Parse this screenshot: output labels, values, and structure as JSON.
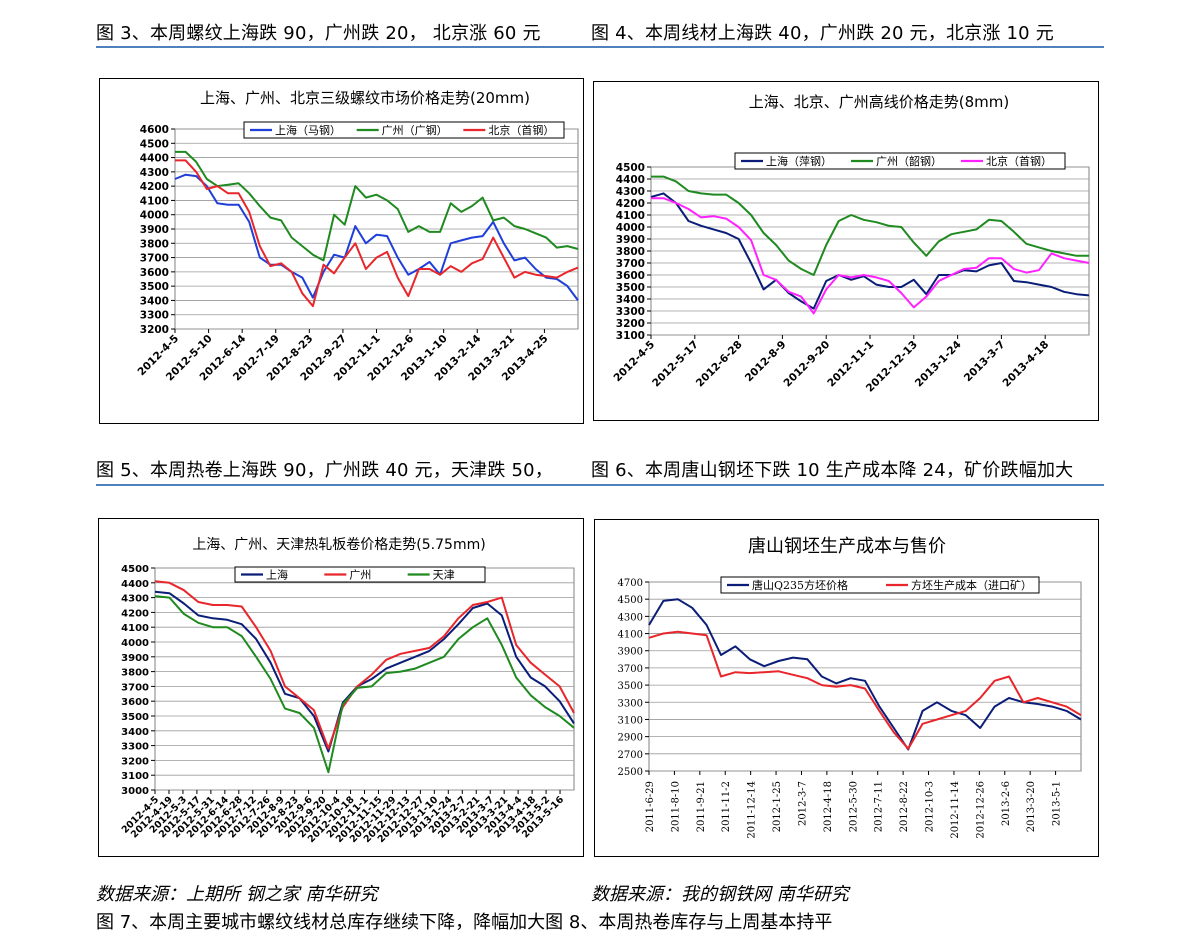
{
  "captions": {
    "fig3": "图 3、本周螺纹上海跌 90，广州跌 20，  北京涨 60 元",
    "fig4": "图 4、本周线材上海跌 40，广州跌 20 元，北京涨 10 元",
    "fig5": "图 5、本周热卷上海跌 90，广州跌 40 元，天津跌 50，",
    "fig6": "图 6、本周唐山钢坯下跌 10 生产成本降 24，矿价跌幅加大"
  },
  "sources": {
    "left": "数据来源：上期所   钢之家    南华研究",
    "right": "数据来源：我的钢铁网    南华研究"
  },
  "footer_cut": "图 7、本周主要城市螺纹线材总库存继续下降，降幅加大图 8、本周热卷库存与上周基本持平",
  "colors": {
    "blue": "#1f3fd8",
    "green": "#1f8a1f",
    "red": "#e8262b",
    "magenta": "#ff22ff",
    "navy": "#0a1d78",
    "border": "#4f81bd"
  },
  "chart_data": [
    {
      "type": "line",
      "title": "上海、广州、北京三级螺纹市场价格走势(20mm)",
      "ylim": [
        3200,
        4600
      ],
      "yticks": [
        "3200",
        "3300",
        "3400",
        "3500",
        "3600",
        "3700",
        "3800",
        "3900",
        "4000",
        "4100",
        "4200",
        "4300",
        "4400",
        "4500",
        "4600"
      ],
      "xticks": [
        "2012-4-5",
        "2012-5-10",
        "2012-6-14",
        "2012-7-19",
        "2012-8-23",
        "2012-9-27",
        "2012-11-1",
        "2012-12-6",
        "2013-1-10",
        "2013-2-14",
        "2013-3-21",
        "2013-4-25"
      ],
      "legend_position": "top",
      "series": [
        {
          "name": "上海（马钢）",
          "color": "#1f3fd8",
          "values": [
            4250,
            4280,
            4270,
            4200,
            4080,
            4070,
            4070,
            3950,
            3700,
            3650,
            3650,
            3600,
            3560,
            3420,
            3600,
            3720,
            3700,
            3920,
            3800,
            3860,
            3850,
            3700,
            3580,
            3620,
            3670,
            3580,
            3800,
            3820,
            3840,
            3850,
            3950,
            3800,
            3680,
            3700,
            3620,
            3560,
            3550,
            3500,
            3400
          ]
        },
        {
          "name": "广州（广钢）",
          "color": "#1f8a1f",
          "values": [
            4440,
            4440,
            4370,
            4250,
            4200,
            4210,
            4220,
            4150,
            4060,
            3980,
            3960,
            3840,
            3780,
            3720,
            3680,
            4000,
            3930,
            4200,
            4120,
            4140,
            4100,
            4040,
            3880,
            3920,
            3880,
            3880,
            4080,
            4020,
            4060,
            4120,
            3960,
            3980,
            3920,
            3900,
            3870,
            3840,
            3770,
            3780,
            3760
          ]
        },
        {
          "name": "北京（首钢）",
          "color": "#e8262b",
          "values": [
            4380,
            4380,
            4300,
            4180,
            4200,
            4150,
            4150,
            4020,
            3780,
            3640,
            3660,
            3600,
            3450,
            3360,
            3650,
            3590,
            3700,
            3800,
            3620,
            3700,
            3740,
            3560,
            3430,
            3620,
            3620,
            3580,
            3640,
            3600,
            3660,
            3690,
            3840,
            3700,
            3560,
            3600,
            3580,
            3570,
            3560,
            3600,
            3630
          ]
        }
      ]
    },
    {
      "type": "line",
      "title": "上海、北京、广州高线价格走势(8mm)",
      "ylim": [
        3100,
        4500
      ],
      "yticks": [
        "3100",
        "3200",
        "3300",
        "3400",
        "3500",
        "3600",
        "3700",
        "3800",
        "3900",
        "4000",
        "4100",
        "4200",
        "4300",
        "4400",
        "4500"
      ],
      "xticks": [
        "2012-4-5",
        "2012-5-17",
        "2012-6-28",
        "2012-8-9",
        "2012-9-20",
        "2012-11-1",
        "2012-12-13",
        "2013-1-24",
        "2013-3-7",
        "2013-4-18"
      ],
      "legend_position": "top",
      "series": [
        {
          "name": "上海（萍钢）",
          "color": "#0a1d78",
          "values": [
            4250,
            4280,
            4200,
            4050,
            4010,
            3980,
            3950,
            3900,
            3700,
            3480,
            3560,
            3450,
            3380,
            3320,
            3550,
            3600,
            3560,
            3590,
            3520,
            3500,
            3500,
            3560,
            3440,
            3600,
            3600,
            3640,
            3630,
            3680,
            3700,
            3550,
            3540,
            3520,
            3500,
            3460,
            3440,
            3430
          ]
        },
        {
          "name": "广州（韶钢）",
          "color": "#1f8a1f",
          "values": [
            4420,
            4420,
            4380,
            4300,
            4280,
            4270,
            4270,
            4200,
            4100,
            3950,
            3850,
            3720,
            3650,
            3600,
            3850,
            4050,
            4100,
            4060,
            4040,
            4010,
            4000,
            3870,
            3760,
            3880,
            3940,
            3960,
            3980,
            4060,
            4050,
            3960,
            3860,
            3830,
            3800,
            3780,
            3760,
            3760
          ]
        },
        {
          "name": "北京（首钢）",
          "color": "#ff22ff",
          "values": [
            4240,
            4240,
            4200,
            4150,
            4080,
            4090,
            4070,
            4000,
            3890,
            3600,
            3560,
            3460,
            3420,
            3280,
            3480,
            3600,
            3580,
            3600,
            3580,
            3550,
            3450,
            3330,
            3420,
            3550,
            3600,
            3650,
            3660,
            3740,
            3740,
            3650,
            3620,
            3640,
            3780,
            3740,
            3720,
            3700
          ]
        }
      ]
    },
    {
      "type": "line",
      "title": "上海、广州、天津热轧板卷价格走势(5.75mm)",
      "ylim": [
        3000,
        4500
      ],
      "yticks": [
        "3000",
        "3100",
        "3200",
        "3300",
        "3400",
        "3500",
        "3600",
        "3700",
        "3800",
        "3900",
        "4000",
        "4100",
        "4200",
        "4300",
        "4400",
        "4500"
      ],
      "xticks": [
        "2012-4-5",
        "2012-4-19",
        "2012-5-3",
        "2012-5-17",
        "2012-5-31",
        "2012-6-14",
        "2012-6-28",
        "2012-7-12",
        "2012-7-26",
        "2012-8-9",
        "2012-8-23",
        "2012-9-6",
        "2012-9-20",
        "2012-10-4",
        "2012-10-18",
        "2012-11-1",
        "2012-11-15",
        "2012-11-29",
        "2012-12-13",
        "2012-12-27",
        "2013-1-10",
        "2013-1-24",
        "2013-2-7",
        "2013-2-21",
        "2013-3-7",
        "2013-3-21",
        "2013-4-4",
        "2013-4-18",
        "2013-5-2",
        "2013-5-16"
      ],
      "legend_position": "top",
      "series": [
        {
          "name": "上海",
          "color": "#0a1d78",
          "values": [
            4340,
            4330,
            4260,
            4180,
            4160,
            4150,
            4120,
            4020,
            3860,
            3650,
            3620,
            3500,
            3260,
            3590,
            3700,
            3750,
            3820,
            3860,
            3900,
            3940,
            4020,
            4120,
            4230,
            4260,
            4180,
            3900,
            3760,
            3700,
            3600,
            3450
          ]
        },
        {
          "name": "广州",
          "color": "#e8262b",
          "values": [
            4410,
            4400,
            4350,
            4270,
            4250,
            4250,
            4240,
            4100,
            3940,
            3700,
            3620,
            3540,
            3280,
            3560,
            3700,
            3780,
            3880,
            3920,
            3940,
            3960,
            4040,
            4160,
            4250,
            4270,
            4300,
            3980,
            3860,
            3780,
            3700,
            3520
          ]
        },
        {
          "name": "天津",
          "color": "#1f8a1f",
          "values": [
            4310,
            4300,
            4190,
            4130,
            4100,
            4100,
            4040,
            3900,
            3750,
            3550,
            3520,
            3420,
            3120,
            3580,
            3690,
            3700,
            3790,
            3800,
            3820,
            3860,
            3900,
            4020,
            4100,
            4160,
            3980,
            3760,
            3640,
            3560,
            3500,
            3420
          ]
        }
      ]
    },
    {
      "type": "line",
      "title": "唐山钢坯生产成本与售价",
      "ylim": [
        2500,
        4700
      ],
      "yticks": [
        "2500",
        "2700",
        "2900",
        "3100",
        "3300",
        "3500",
        "3700",
        "3900",
        "4100",
        "4300",
        "4500",
        "4700"
      ],
      "xticks": [
        "2011-6-29",
        "2011-8-10",
        "2011-9-21",
        "2011-11-2",
        "2011-12-14",
        "2012-1-25",
        "2012-3-7",
        "2012-4-18",
        "2012-5-30",
        "2012-7-11",
        "2012-8-22",
        "2012-10-3",
        "2012-11-14",
        "2012-12-26",
        "2013-2-6",
        "2013-3-20",
        "2013-5-1"
      ],
      "legend_position": "top",
      "series": [
        {
          "name": "唐山Q235方坯价格",
          "color": "#0a1d78",
          "values": [
            4200,
            4480,
            4500,
            4400,
            4200,
            3850,
            3950,
            3800,
            3720,
            3780,
            3820,
            3800,
            3600,
            3520,
            3580,
            3550,
            3250,
            3000,
            2750,
            3200,
            3300,
            3200,
            3150,
            3000,
            3250,
            3350,
            3300,
            3280,
            3250,
            3200,
            3100
          ]
        },
        {
          "name": "方坯生产成本（进口矿）",
          "color": "#e8262b",
          "values": [
            4050,
            4100,
            4120,
            4100,
            4080,
            3600,
            3650,
            3640,
            3650,
            3660,
            3620,
            3580,
            3500,
            3480,
            3500,
            3460,
            3200,
            2950,
            2760,
            3050,
            3100,
            3150,
            3200,
            3350,
            3550,
            3600,
            3300,
            3350,
            3300,
            3250,
            3150
          ]
        }
      ]
    }
  ]
}
